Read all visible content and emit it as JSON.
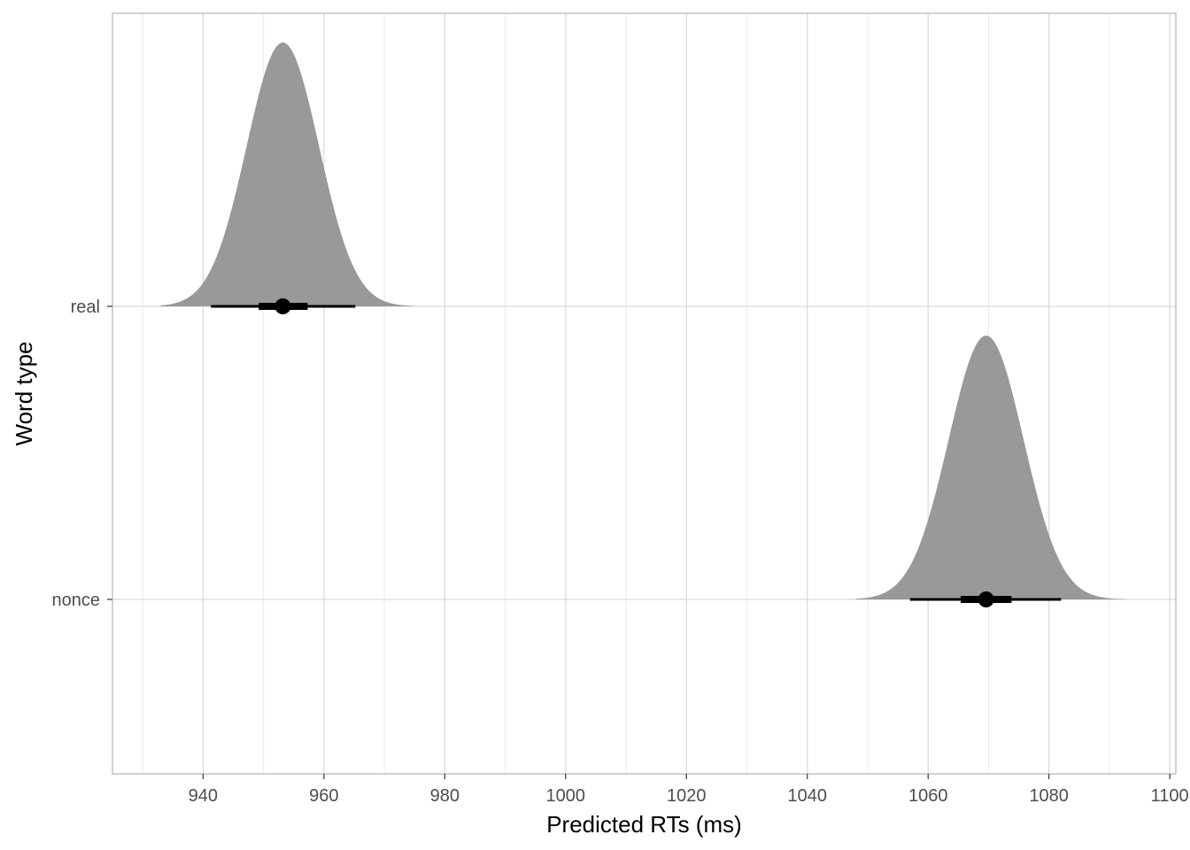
{
  "chart_data": {
    "type": "halfeye",
    "title": "",
    "xlabel": "Predicted RTs (ms)",
    "ylabel": "Word type",
    "xlim": [
      925,
      1101
    ],
    "xticks": [
      940,
      960,
      980,
      1000,
      1020,
      1040,
      1060,
      1080,
      1100
    ],
    "xtick_labels": [
      "940",
      "960",
      "980",
      "1000",
      "1020",
      "1040",
      "1060",
      "1080",
      "1100"
    ],
    "categories": [
      "nonce",
      "real"
    ],
    "grid": true,
    "colors": {
      "density": "#999999",
      "interval": "#000000",
      "grid_major": "#d9d9d9",
      "grid_minor": "#ebebeb",
      "panel_border": "#b3b3b3"
    },
    "series": [
      {
        "category": "real",
        "mean": 953.2,
        "sd": 6.0,
        "inner_interval": [
          949.2,
          957.3
        ],
        "outer_interval": [
          941.3,
          965.2
        ],
        "density_range": [
          933,
          975
        ]
      },
      {
        "category": "nonce",
        "mean": 1069.6,
        "sd": 6.2,
        "inner_interval": [
          1065.4,
          1073.8
        ],
        "outer_interval": [
          1057.0,
          1082.0
        ],
        "density_range": [
          1048,
          1093
        ]
      }
    ]
  }
}
